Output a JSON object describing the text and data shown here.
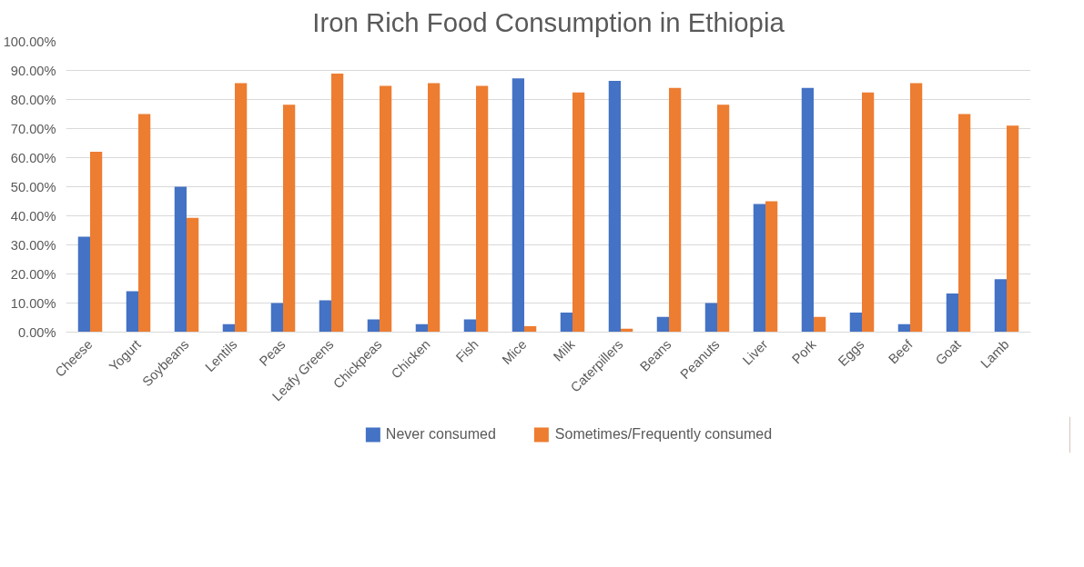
{
  "chart_data": {
    "type": "bar",
    "title": "Iron Rich Food Consumption in Ethiopia",
    "categories": [
      "Cheese",
      "Yogurt",
      "Soybeans",
      "Lentils",
      "Peas",
      "Leafy Greens",
      "Chickpeas",
      "Chicken",
      "Fish",
      "Mice",
      "Milk",
      "Caterpillers",
      "Beans",
      "Peanuts",
      "Liver",
      "Pork",
      "Eggs",
      "Beef",
      "Goat",
      "Lamb"
    ],
    "series": [
      {
        "name": "Never consumed",
        "color": "#4472c4",
        "values": [
          32.8,
          14.1,
          50,
          2.7,
          10,
          10.9,
          4.4,
          2.7,
          4.4,
          87.3,
          6.7,
          86.4,
          5.2,
          10,
          44.1,
          84,
          6.7,
          2.7,
          13.3,
          18.2
        ]
      },
      {
        "name": "Sometimes/Frequently consumed",
        "color": "#ed7d31",
        "values": [
          62,
          75,
          39.3,
          85.6,
          78.2,
          88.9,
          84.7,
          85.6,
          84.7,
          2,
          82.4,
          1.2,
          84,
          78.2,
          45,
          5.2,
          82.4,
          85.6,
          75,
          71
        ]
      }
    ],
    "ylim": [
      0,
      100
    ],
    "yticks": [
      {
        "value": 0,
        "label": "0.00%"
      },
      {
        "value": 10,
        "label": "10.00%"
      },
      {
        "value": 20,
        "label": "20.00%"
      },
      {
        "value": 30,
        "label": "30.00%"
      },
      {
        "value": 40,
        "label": "40.00%"
      },
      {
        "value": 50,
        "label": "50.00%"
      },
      {
        "value": 60,
        "label": "60.00%"
      },
      {
        "value": 70,
        "label": "70.00%"
      },
      {
        "value": 80,
        "label": "80.00%"
      },
      {
        "value": 90,
        "label": "90.00%"
      },
      {
        "value": 100,
        "label": "100.00%"
      }
    ],
    "grid": "y",
    "legend": "bottom"
  }
}
